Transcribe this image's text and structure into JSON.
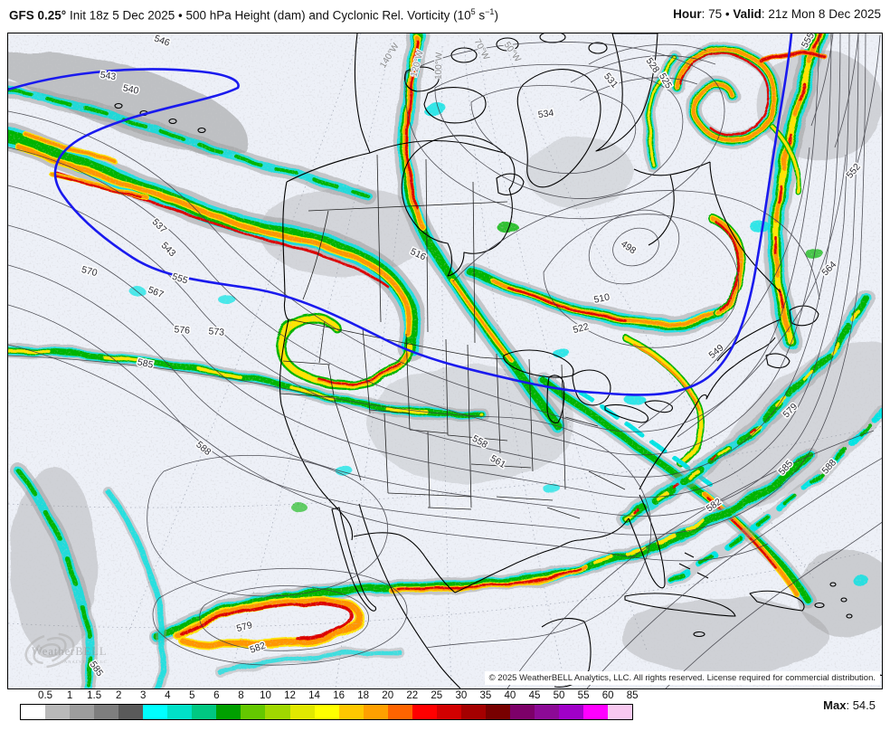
{
  "header": {
    "model": "GFS 0.25°",
    "title_rest": " Init 18z 5 Dec 2025 • 500 hPa Height (dam) and Cyclonic Rel. Vorticity (10",
    "unit_exp1": "5",
    "unit_mid": " s",
    "unit_exp2": "−1",
    "title_close": ")",
    "hour_label": "Hour",
    "hour_value": ": 75",
    "separator": "•",
    "valid_label": "Valid",
    "valid_value": ": 21z Mon 8 Dec 2025"
  },
  "map": {
    "contour_labels": [
      {
        "text": "546"
      },
      {
        "text": "543"
      },
      {
        "text": "540"
      },
      {
        "text": "537"
      },
      {
        "text": "543"
      },
      {
        "text": "534"
      },
      {
        "text": "531"
      },
      {
        "text": "528"
      },
      {
        "text": "525"
      },
      {
        "text": "555"
      },
      {
        "text": "552"
      },
      {
        "text": "570"
      },
      {
        "text": "555"
      },
      {
        "text": "567"
      },
      {
        "text": "576"
      },
      {
        "text": "573"
      },
      {
        "text": "585"
      },
      {
        "text": "588"
      },
      {
        "text": "516"
      },
      {
        "text": "558"
      },
      {
        "text": "561"
      },
      {
        "text": "522"
      },
      {
        "text": "510"
      },
      {
        "text": "498"
      },
      {
        "text": "549"
      },
      {
        "text": "564"
      },
      {
        "text": "579"
      },
      {
        "text": "585"
      },
      {
        "text": "588"
      },
      {
        "text": "582"
      },
      {
        "text": "579"
      },
      {
        "text": "582"
      },
      {
        "text": "585"
      }
    ],
    "lon_labels": [
      {
        "text": "140°W"
      },
      {
        "text": "120°W"
      },
      {
        "text": "100°W"
      },
      {
        "text": "70°W"
      },
      {
        "text": "50°W"
      }
    ],
    "highlight_contour": {
      "value": "540",
      "color": "#1a1aee"
    }
  },
  "watermark": {
    "name": "WeatherBELL",
    "sub": "ANALYTICS LLC"
  },
  "copyright": "© 2025 WeatherBELL Analytics, LLC. All rights reserved. License required for commercial distribution.",
  "legend": {
    "stops": [
      {
        "label": "0.5",
        "color": "#ffffff"
      },
      {
        "label": "1",
        "color": "#b9b9b9"
      },
      {
        "label": "1.5",
        "color": "#9d9d9d"
      },
      {
        "label": "2",
        "color": "#7e7e7e"
      },
      {
        "label": "3",
        "color": "#5a5a5a"
      },
      {
        "label": "4",
        "color": "#00ffff"
      },
      {
        "label": "5",
        "color": "#00e1c8"
      },
      {
        "label": "6",
        "color": "#00c882"
      },
      {
        "label": "8",
        "color": "#00a000"
      },
      {
        "label": "10",
        "color": "#64c800"
      },
      {
        "label": "12",
        "color": "#a0d800"
      },
      {
        "label": "14",
        "color": "#e1e800"
      },
      {
        "label": "16",
        "color": "#ffff00"
      },
      {
        "label": "18",
        "color": "#ffc800"
      },
      {
        "label": "20",
        "color": "#ffa000"
      },
      {
        "label": "22",
        "color": "#ff6400"
      },
      {
        "label": "25",
        "color": "#ff0000"
      },
      {
        "label": "30",
        "color": "#d20000"
      },
      {
        "label": "35",
        "color": "#a50000"
      },
      {
        "label": "40",
        "color": "#780000"
      },
      {
        "label": "45",
        "color": "#7d0069"
      },
      {
        "label": "50",
        "color": "#8c0a96"
      },
      {
        "label": "55",
        "color": "#a000c8"
      },
      {
        "label": "60",
        "color": "#ff00ff"
      },
      {
        "label": "85",
        "color": "#f8c8f0"
      }
    ],
    "max_label": "Max",
    "max_value": ": 54.5"
  }
}
